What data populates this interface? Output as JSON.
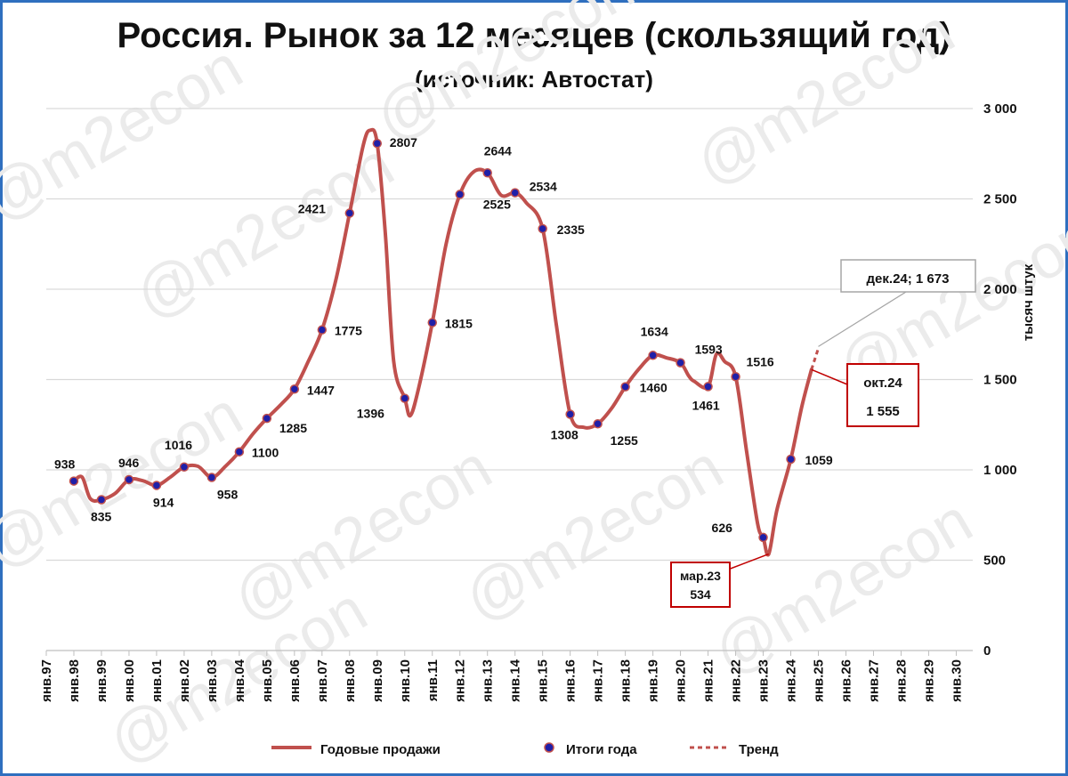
{
  "colors": {
    "line": "#c0504d",
    "marker_fill": "#1f1fa8",
    "frame": "#2f6fbf",
    "callout_red": "#c00000",
    "grid": "#d9d9d9"
  },
  "watermark": "@m2econ",
  "chart_data": {
    "type": "line",
    "title": "Россия. Рынок за 12 месяцев (скользящий год)",
    "subtitle": "(источник: Автостат)",
    "ylabel": "тысяч штук",
    "ylim": [
      0,
      3000
    ],
    "yticks": [
      "0",
      "500",
      "1 000",
      "1 500",
      "2 000",
      "2 500",
      "3 000"
    ],
    "xticks": [
      "янв.97",
      "янв.98",
      "янв.99",
      "янв.00",
      "янв.01",
      "янв.02",
      "янв.03",
      "янв.04",
      "янв.05",
      "янв.06",
      "янв.07",
      "янв.08",
      "янв.09",
      "янв.10",
      "янв.11",
      "янв.12",
      "янв.13",
      "янв.14",
      "янв.15",
      "янв.16",
      "янв.17",
      "янв.18",
      "янв.19",
      "янв.20",
      "янв.21",
      "янв.22",
      "янв.23",
      "янв.24",
      "янв.25",
      "янв.26",
      "янв.27",
      "янв.28",
      "янв.29",
      "янв.30"
    ],
    "legend": {
      "position": "bottom",
      "line": "Годовые продажи",
      "markers": "Итоги года",
      "trend": "Тренд"
    },
    "series_line": [
      [
        1998.0,
        938
      ],
      [
        1998.3,
        960
      ],
      [
        1998.6,
        840
      ],
      [
        1999.0,
        835
      ],
      [
        1999.5,
        870
      ],
      [
        2000.0,
        946
      ],
      [
        2000.5,
        940
      ],
      [
        2001.0,
        914
      ],
      [
        2001.5,
        960
      ],
      [
        2002.0,
        1016
      ],
      [
        2002.5,
        1020
      ],
      [
        2003.0,
        958
      ],
      [
        2003.5,
        1020
      ],
      [
        2004.0,
        1100
      ],
      [
        2004.5,
        1200
      ],
      [
        2005.0,
        1285
      ],
      [
        2005.5,
        1360
      ],
      [
        2006.0,
        1447
      ],
      [
        2006.5,
        1600
      ],
      [
        2007.0,
        1775
      ],
      [
        2007.5,
        2050
      ],
      [
        2008.0,
        2421
      ],
      [
        2008.5,
        2800
      ],
      [
        2008.75,
        2880
      ],
      [
        2009.0,
        2807
      ],
      [
        2009.3,
        2300
      ],
      [
        2009.6,
        1600
      ],
      [
        2010.0,
        1396
      ],
      [
        2010.2,
        1300
      ],
      [
        2010.5,
        1450
      ],
      [
        2011.0,
        1815
      ],
      [
        2011.5,
        2250
      ],
      [
        2012.0,
        2525
      ],
      [
        2012.5,
        2650
      ],
      [
        2013.0,
        2644
      ],
      [
        2013.5,
        2520
      ],
      [
        2014.0,
        2534
      ],
      [
        2014.4,
        2480
      ],
      [
        2015.0,
        2335
      ],
      [
        2015.5,
        1800
      ],
      [
        2016.0,
        1308
      ],
      [
        2016.5,
        1235
      ],
      [
        2017.0,
        1255
      ],
      [
        2017.5,
        1340
      ],
      [
        2018.0,
        1460
      ],
      [
        2018.5,
        1560
      ],
      [
        2019.0,
        1634
      ],
      [
        2019.5,
        1620
      ],
      [
        2020.0,
        1593
      ],
      [
        2020.3,
        1520
      ],
      [
        2020.5,
        1490
      ],
      [
        2021.0,
        1461
      ],
      [
        2021.3,
        1640
      ],
      [
        2021.6,
        1600
      ],
      [
        2022.0,
        1516
      ],
      [
        2022.4,
        1100
      ],
      [
        2022.8,
        700
      ],
      [
        2023.0,
        626
      ],
      [
        2023.2,
        534
      ],
      [
        2023.5,
        780
      ],
      [
        2024.0,
        1059
      ],
      [
        2024.4,
        1350
      ],
      [
        2024.75,
        1555
      ]
    ],
    "series_trend": [
      [
        2024.75,
        1555
      ],
      [
        2025.0,
        1673
      ]
    ],
    "year_totals": [
      {
        "x": 1998,
        "y": 938,
        "label": "938"
      },
      {
        "x": 1999,
        "y": 835,
        "label": "835"
      },
      {
        "x": 2000,
        "y": 946,
        "label": "946"
      },
      {
        "x": 2001,
        "y": 914,
        "label": "914"
      },
      {
        "x": 2002,
        "y": 1016,
        "label": "1016"
      },
      {
        "x": 2003,
        "y": 958,
        "label": "958"
      },
      {
        "x": 2004,
        "y": 1100,
        "label": "1100"
      },
      {
        "x": 2005,
        "y": 1285,
        "label": "1285"
      },
      {
        "x": 2006,
        "y": 1447,
        "label": "1447"
      },
      {
        "x": 2007,
        "y": 1775,
        "label": "1775"
      },
      {
        "x": 2008,
        "y": 2421,
        "label": "2421"
      },
      {
        "x": 2009,
        "y": 2807,
        "label": "2807"
      },
      {
        "x": 2010,
        "y": 1396,
        "label": "1396"
      },
      {
        "x": 2011,
        "y": 1815,
        "label": "1815"
      },
      {
        "x": 2012,
        "y": 2525,
        "label": "2525"
      },
      {
        "x": 2013,
        "y": 2644,
        "label": "2644"
      },
      {
        "x": 2014,
        "y": 2534,
        "label": "2534"
      },
      {
        "x": 2015,
        "y": 2335,
        "label": "2335"
      },
      {
        "x": 2016,
        "y": 1308,
        "label": "1308"
      },
      {
        "x": 2017,
        "y": 1255,
        "label": "1255"
      },
      {
        "x": 2018,
        "y": 1460,
        "label": "1460"
      },
      {
        "x": 2019,
        "y": 1634,
        "label": "1634"
      },
      {
        "x": 2020,
        "y": 1593,
        "label": "1593"
      },
      {
        "x": 2021,
        "y": 1461,
        "label": "1461"
      },
      {
        "x": 2022,
        "y": 1516,
        "label": "1516"
      },
      {
        "x": 2023,
        "y": 626,
        "label": "626"
      },
      {
        "x": 2024,
        "y": 1059,
        "label": "1059"
      }
    ],
    "callouts": {
      "trend": {
        "x": 2025.0,
        "y": 1673,
        "text": "дек.24; 1 673"
      },
      "current": {
        "x": 2024.75,
        "y": 1555,
        "line1": "окт.24",
        "line2": "1 555"
      },
      "minimum": {
        "x": 2023.2,
        "y": 534,
        "line1": "мар.23",
        "line2": "534"
      }
    }
  }
}
